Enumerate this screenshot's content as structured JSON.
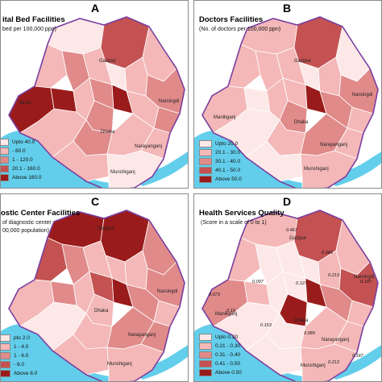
{
  "panels": [
    {
      "letter": "A",
      "title": "ital Bed Facilities",
      "subtitle": "bed per 100,000 ppn)",
      "legend": [
        {
          "label": "Upto 40.0",
          "color": "#fde8e8"
        },
        {
          "label": "- 80.0",
          "color": "#f4b8b8"
        },
        {
          "label": "1 - 120.0",
          "color": "#e08a8a"
        },
        {
          "label": "20.1 - 160.0",
          "color": "#c45252"
        },
        {
          "label": "Above 160.0",
          "color": "#9a1b1b"
        }
      ],
      "places": [
        "Gazipur",
        "Narsingdi",
        "Savar",
        "Dhaka",
        "Narayanganj",
        "Munshiganj"
      ]
    },
    {
      "letter": "B",
      "title": "Doctors Facilities",
      "subtitle": "(No. of doctors per 100,000 ppn)",
      "legend": [
        {
          "label": "Upto 20.0",
          "color": "#fde8e8"
        },
        {
          "label": "20.1 - 30.0",
          "color": "#f4b8b8"
        },
        {
          "label": "30.1 - 40.0",
          "color": "#e08a8a"
        },
        {
          "label": "40.1 - 50.0",
          "color": "#c45252"
        },
        {
          "label": "Above 50.0",
          "color": "#9a1b1b"
        }
      ],
      "places": [
        "Gazipur",
        "Narsingdi",
        "Manikganj",
        "Dhaka",
        "Narayanganj",
        "Munshiganj"
      ]
    },
    {
      "letter": "C",
      "title": "ostic Center Facilities",
      "subtitle": "of diagnostic center",
      "subtitle2": "00,000 population)",
      "legend": [
        {
          "label": "pto 2.0",
          "color": "#fde8e8"
        },
        {
          "label": "1 - 4.0",
          "color": "#f4b8b8"
        },
        {
          "label": "1 - 6.0",
          "color": "#e08a8a"
        },
        {
          "label": "- 8.0",
          "color": "#c45252"
        },
        {
          "label": "Above 8.0",
          "color": "#9a1b1b"
        }
      ],
      "places": [
        "Gazipur",
        "Narsingdi",
        "Dhaka",
        "Narayanganj",
        "Munshiganj"
      ]
    },
    {
      "letter": "D",
      "title": "Health Services Quality",
      "subtitle": "(Score in a scale of 0 to 1)",
      "legend": [
        {
          "label": "Upto 0.20",
          "color": "#fde8e8"
        },
        {
          "label": "0.21 - 0.30",
          "color": "#f4b8b8"
        },
        {
          "label": "0.31 - 0.40",
          "color": "#e08a8a"
        },
        {
          "label": "0.41 - 0.50",
          "color": "#c45252"
        },
        {
          "label": "Above 0.50",
          "color": "#9a1b1b"
        }
      ],
      "places": [
        "Gazipur",
        "Narsingdi",
        "Manikganj",
        "Dhaka",
        "Narayanganj",
        "Munshiganj"
      ],
      "scores": [
        "0.467",
        "0.343",
        "0.213",
        "0.197",
        "0.097",
        "0.127",
        "0.073",
        "0.19",
        "0.153",
        "0.089",
        "0.213",
        "0.187"
      ]
    }
  ],
  "colors": {
    "boundary": "#7a3fa0",
    "river": "#48c6e8",
    "district_line": "#ffffff"
  }
}
